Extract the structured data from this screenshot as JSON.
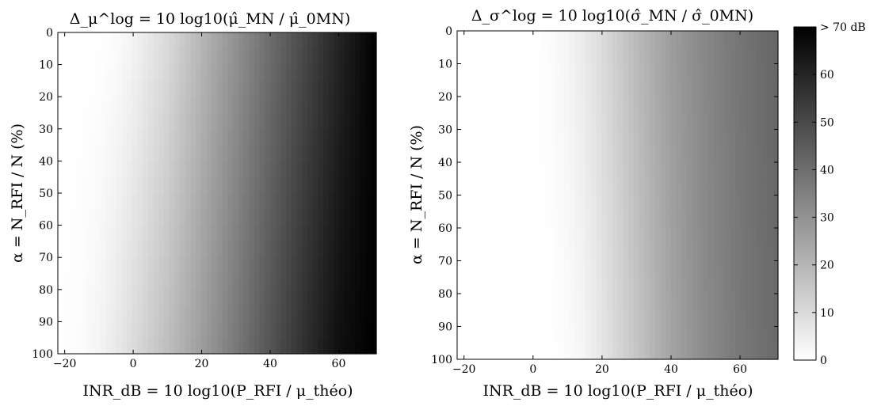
{
  "chart_data": [
    {
      "type": "heatmap",
      "title": "Δ_μ^log = 10 log10(μ̂_MN / μ̂_0MN)",
      "xlabel": "INR_dB = 10 log10(P_RFI / μ_théo)",
      "ylabel": "α = N_RFI / N   (%)",
      "xlim": [
        -22,
        71
      ],
      "ylim": [
        0,
        100
      ],
      "x_ticks": [
        "−20",
        "0",
        "20",
        "40",
        "60"
      ],
      "x_tick_values": [
        -20,
        0,
        20,
        40,
        60
      ],
      "y_ticks": [
        "0",
        "10",
        "20",
        "30",
        "40",
        "50",
        "60",
        "70",
        "80",
        "90",
        "100"
      ],
      "y_tick_values": [
        0,
        10,
        20,
        30,
        40,
        50,
        60,
        70,
        80,
        90,
        100
      ],
      "x_samples": [
        -22,
        -15,
        -10,
        -5,
        0,
        10,
        20,
        30,
        40,
        50,
        60,
        71
      ],
      "z_row_alpha_0": [
        0,
        0,
        0,
        1,
        3,
        10,
        20,
        30,
        40,
        50,
        60,
        70
      ],
      "z_row_alpha_100": [
        0,
        1,
        3,
        6,
        10,
        18,
        27,
        37,
        47,
        57,
        66,
        70
      ],
      "colormap": "gray-reversed",
      "zlim": [
        0,
        70
      ]
    },
    {
      "type": "heatmap",
      "title": "Δ_σ^log = 10 log10(σ̂_MN / σ̂_0MN)",
      "xlabel": "INR_dB = 10 log10(P_RFI / μ_théo)",
      "ylabel": "α = N_RFI / N   (%)",
      "xlim": [
        -22,
        71
      ],
      "ylim": [
        0,
        100
      ],
      "x_ticks": [
        "−20",
        "0",
        "20",
        "40",
        "60"
      ],
      "x_tick_values": [
        -20,
        0,
        20,
        40,
        60
      ],
      "y_ticks": [
        "0",
        "10",
        "20",
        "30",
        "40",
        "50",
        "60",
        "70",
        "80",
        "90",
        "100"
      ],
      "y_tick_values": [
        0,
        10,
        20,
        30,
        40,
        50,
        60,
        70,
        80,
        90,
        100
      ],
      "x_samples": [
        -22,
        0,
        5,
        10,
        15,
        20,
        30,
        40,
        50,
        60,
        71
      ],
      "z_row_alpha_0": [
        0,
        0,
        1,
        3,
        6,
        10,
        19,
        27,
        33,
        38,
        42
      ],
      "z_row_alpha_100": [
        0,
        0,
        0,
        1,
        3,
        7,
        16,
        25,
        32,
        37,
        41
      ],
      "colormap": "gray-reversed",
      "zlim": [
        0,
        70
      ],
      "colorbar": {
        "ticks": [
          "0",
          "10",
          "20",
          "30",
          "40",
          "50",
          "60",
          "> 70 dB"
        ],
        "tick_values": [
          0,
          10,
          20,
          30,
          40,
          50,
          60,
          70
        ]
      }
    }
  ]
}
